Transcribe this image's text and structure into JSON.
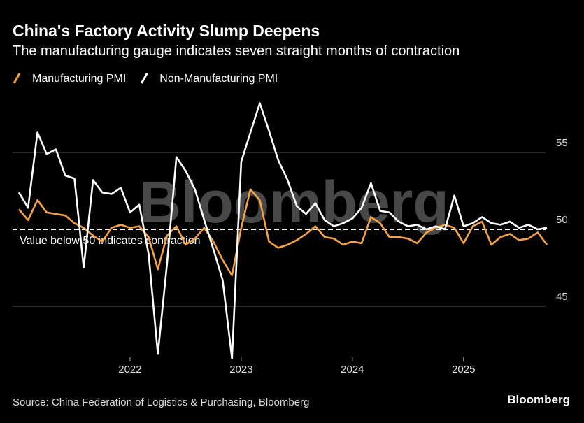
{
  "chart_data": {
    "type": "line",
    "title": "China's Factory Activity Slump Deepens",
    "subtitle": "The manufacturing gauge indicates seven straight months of contraction",
    "annotation": "Value below 50 indicates contraction",
    "reference_line": 50,
    "watermark": "Bloomberg",
    "source": "Source: China Federation of Logistics & Purchasing, Bloomberg",
    "logo": "Bloomberg",
    "x": [
      2021,
      2021.083,
      2021.167,
      2021.25,
      2021.333,
      2021.417,
      2021.5,
      2021.583,
      2021.667,
      2021.75,
      2021.833,
      2021.917,
      2022,
      2022.083,
      2022.167,
      2022.25,
      2022.333,
      2022.417,
      2022.5,
      2022.583,
      2022.667,
      2022.75,
      2022.833,
      2022.917,
      2023,
      2023.083,
      2023.167,
      2023.25,
      2023.333,
      2023.417,
      2023.5,
      2023.583,
      2023.667,
      2023.75,
      2023.833,
      2023.917,
      2024,
      2024.083,
      2024.167,
      2024.25,
      2024.333,
      2024.417,
      2024.5,
      2024.583,
      2024.667,
      2024.75,
      2024.833,
      2024.917,
      2025,
      2025.083,
      2025.167,
      2025.25,
      2025.333,
      2025.417,
      2025.5,
      2025.583,
      2025.667,
      2025.75
    ],
    "series": [
      {
        "name": "Manufacturing PMI",
        "color": "#f5a245",
        "values": [
          51.3,
          50.6,
          51.9,
          51.1,
          51.0,
          50.9,
          50.4,
          50.1,
          49.6,
          49.2,
          50.1,
          50.3,
          50.1,
          50.2,
          49.5,
          47.4,
          49.6,
          50.2,
          49.0,
          49.4,
          50.1,
          49.2,
          48.0,
          47.0,
          50.1,
          52.6,
          51.9,
          49.2,
          48.8,
          49.0,
          49.3,
          49.7,
          50.2,
          49.5,
          49.4,
          49.0,
          49.2,
          49.1,
          50.8,
          50.4,
          49.5,
          49.5,
          49.4,
          49.1,
          49.8,
          50.1,
          50.3,
          50.1,
          49.1,
          50.2,
          50.5,
          49.0,
          49.5,
          49.7,
          49.3,
          49.4,
          49.8,
          49.0
        ]
      },
      {
        "name": "Non-Manufacturing PMI",
        "color": "#ffffff",
        "values": [
          52.4,
          51.4,
          56.3,
          54.9,
          55.2,
          53.5,
          53.3,
          47.5,
          53.2,
          52.4,
          52.3,
          52.7,
          51.1,
          51.6,
          48.4,
          41.9,
          47.8,
          54.7,
          53.8,
          52.6,
          50.6,
          48.7,
          46.7,
          41.6,
          54.4,
          56.3,
          58.2,
          56.4,
          54.5,
          53.2,
          51.5,
          51.0,
          51.7,
          50.6,
          50.2,
          50.4,
          50.7,
          51.4,
          53.0,
          51.2,
          51.1,
          50.5,
          50.2,
          50.3,
          50.0,
          50.2,
          50.0,
          52.2,
          50.2,
          50.4,
          50.8,
          50.4,
          50.3,
          50.5,
          50.1,
          50.3,
          50.0,
          50.1
        ]
      }
    ],
    "xlim": [
      2021,
      2025.75
    ],
    "xticks": [
      2022,
      2023,
      2024,
      2025
    ],
    "ylim": [
      41.7,
      58.5
    ],
    "yticks": [
      45,
      50,
      55
    ],
    "grid": true,
    "legend": "top-left"
  }
}
